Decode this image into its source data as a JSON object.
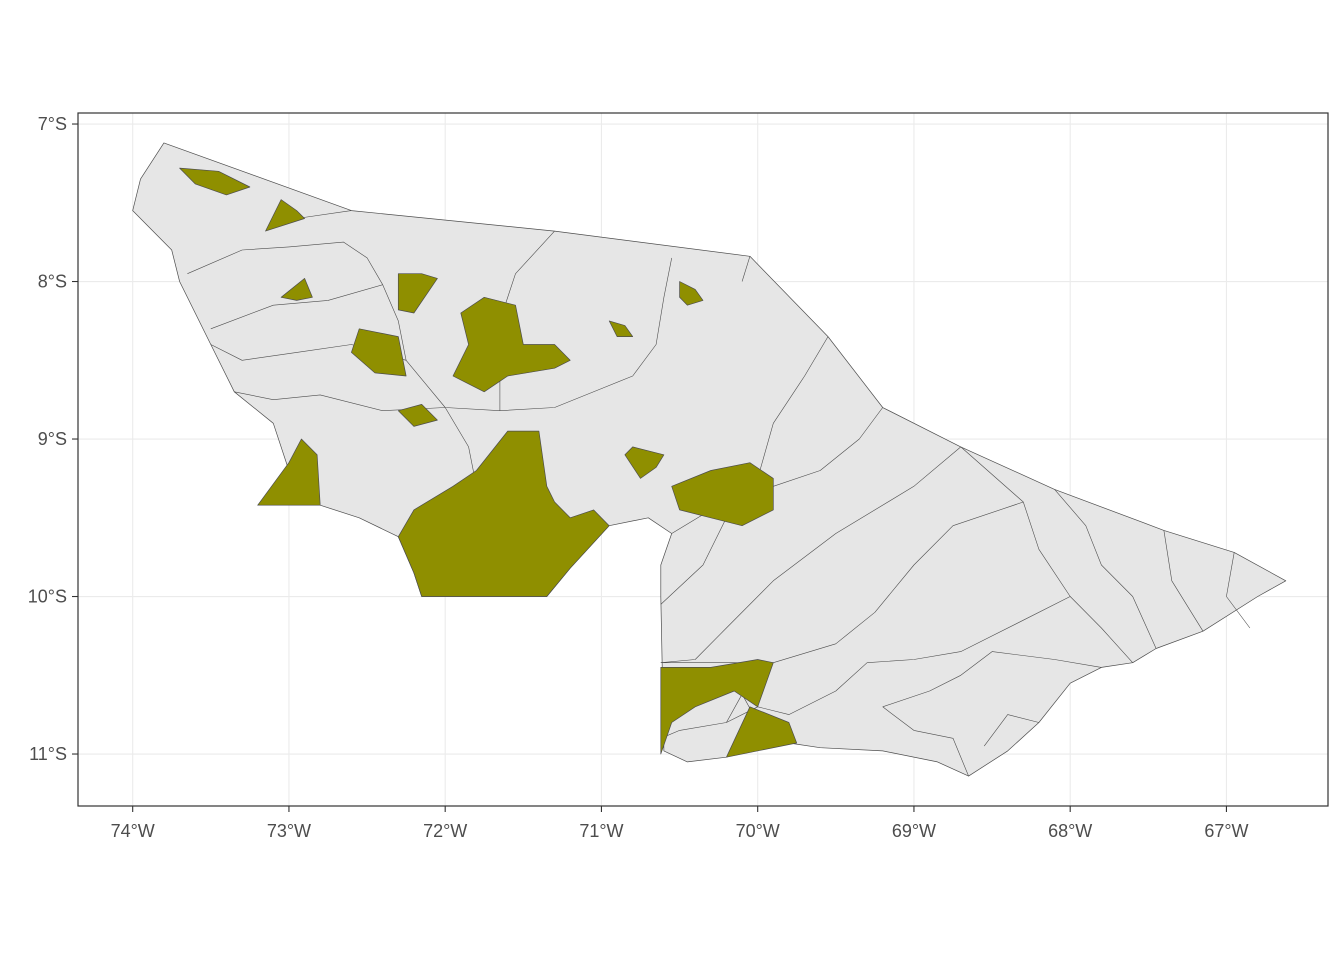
{
  "map": {
    "colors": {
      "background": "#ffffff",
      "grid": "#ebebeb",
      "panel_border": "#333333",
      "state_fill": "#e6e6e6",
      "boundary": "#4d4d4d",
      "highlight_fill": "#8f8f00",
      "axis_text": "#4d4d4d"
    },
    "x_axis": {
      "ticks": [
        {
          "value": -74,
          "label": "74°W"
        },
        {
          "value": -73,
          "label": "73°W"
        },
        {
          "value": -72,
          "label": "72°W"
        },
        {
          "value": -71,
          "label": "71°W"
        },
        {
          "value": -70,
          "label": "70°W"
        },
        {
          "value": -69,
          "label": "69°W"
        },
        {
          "value": -68,
          "label": "68°W"
        },
        {
          "value": -67,
          "label": "67°W"
        }
      ],
      "range": [
        -74.35,
        -66.35
      ]
    },
    "y_axis": {
      "ticks": [
        {
          "value": -7,
          "label": "7°S"
        },
        {
          "value": -8,
          "label": "8°S"
        },
        {
          "value": -9,
          "label": "9°S"
        },
        {
          "value": -10,
          "label": "10°S"
        },
        {
          "value": -11,
          "label": "11°S"
        }
      ],
      "range": [
        -11.33,
        -6.93
      ]
    },
    "legend": "none",
    "grid": true,
    "state_outline": [
      [
        -73.8,
        -7.12
      ],
      [
        -72.6,
        -7.55
      ],
      [
        -71.3,
        -7.68
      ],
      [
        -70.05,
        -7.84
      ],
      [
        -69.55,
        -8.35
      ],
      [
        -69.2,
        -8.8
      ],
      [
        -68.7,
        -9.05
      ],
      [
        -68.1,
        -9.32
      ],
      [
        -67.4,
        -9.58
      ],
      [
        -66.95,
        -9.72
      ],
      [
        -66.62,
        -9.9
      ],
      [
        -66.8,
        -10.0
      ],
      [
        -67.15,
        -10.22
      ],
      [
        -67.45,
        -10.33
      ],
      [
        -67.6,
        -10.42
      ],
      [
        -67.8,
        -10.45
      ],
      [
        -68.0,
        -10.55
      ],
      [
        -68.2,
        -10.8
      ],
      [
        -68.4,
        -10.98
      ],
      [
        -68.65,
        -11.14
      ],
      [
        -68.85,
        -11.05
      ],
      [
        -69.2,
        -10.98
      ],
      [
        -69.6,
        -10.96
      ],
      [
        -69.8,
        -10.93
      ],
      [
        -70.05,
        -10.96
      ],
      [
        -70.2,
        -11.02
      ],
      [
        -70.45,
        -11.05
      ],
      [
        -70.6,
        -10.98
      ],
      [
        -70.62,
        -10.0
      ],
      [
        -70.62,
        -9.8
      ],
      [
        -70.55,
        -9.6
      ],
      [
        -70.7,
        -9.5
      ],
      [
        -70.95,
        -9.55
      ],
      [
        -71.2,
        -9.82
      ],
      [
        -71.35,
        -10.0
      ],
      [
        -72.15,
        -10.0
      ],
      [
        -72.2,
        -9.85
      ],
      [
        -72.3,
        -9.62
      ],
      [
        -72.55,
        -9.5
      ],
      [
        -72.8,
        -9.42
      ],
      [
        -73.2,
        -9.42
      ],
      [
        -73.0,
        -9.2
      ],
      [
        -73.1,
        -8.9
      ],
      [
        -73.35,
        -8.7
      ],
      [
        -73.5,
        -8.4
      ],
      [
        -73.7,
        -8.0
      ],
      [
        -73.75,
        -7.8
      ],
      [
        -74.0,
        -7.55
      ],
      [
        -73.95,
        -7.35
      ],
      [
        -73.8,
        -7.12
      ]
    ],
    "internal_boundaries": [
      [
        [
          -72.4,
          -8.02
        ],
        [
          -72.5,
          -7.85
        ],
        [
          -72.65,
          -7.75
        ],
        [
          -73.0,
          -7.78
        ],
        [
          -73.3,
          -7.8
        ],
        [
          -73.65,
          -7.95
        ]
      ],
      [
        [
          -72.6,
          -7.55
        ],
        [
          -72.95,
          -7.6
        ]
      ],
      [
        [
          -72.4,
          -8.02
        ],
        [
          -72.75,
          -8.12
        ],
        [
          -73.1,
          -8.15
        ],
        [
          -73.5,
          -8.3
        ]
      ],
      [
        [
          -72.4,
          -8.02
        ],
        [
          -72.3,
          -8.25
        ],
        [
          -72.25,
          -8.5
        ],
        [
          -72.0,
          -8.8
        ],
        [
          -71.65,
          -8.82
        ],
        [
          -71.3,
          -8.8
        ],
        [
          -71.0,
          -8.68
        ],
        [
          -70.8,
          -8.6
        ],
        [
          -70.65,
          -8.4
        ],
        [
          -70.6,
          -8.1
        ],
        [
          -70.55,
          -7.85
        ]
      ],
      [
        [
          -71.3,
          -7.68
        ],
        [
          -71.55,
          -7.95
        ],
        [
          -71.65,
          -8.25
        ],
        [
          -71.65,
          -8.82
        ]
      ],
      [
        [
          -72.25,
          -8.5
        ],
        [
          -72.6,
          -8.4
        ],
        [
          -72.95,
          -8.45
        ],
        [
          -73.3,
          -8.5
        ],
        [
          -73.5,
          -8.4
        ]
      ],
      [
        [
          -72.0,
          -8.8
        ],
        [
          -72.4,
          -8.82
        ],
        [
          -72.8,
          -8.72
        ],
        [
          -73.1,
          -8.75
        ],
        [
          -73.35,
          -8.7
        ]
      ],
      [
        [
          -72.0,
          -8.8
        ],
        [
          -71.85,
          -9.05
        ],
        [
          -71.8,
          -9.3
        ],
        [
          -72.0,
          -9.4
        ],
        [
          -72.2,
          -9.55
        ]
      ],
      [
        [
          -70.05,
          -7.84
        ],
        [
          -70.1,
          -8.0
        ]
      ],
      [
        [
          -69.55,
          -8.35
        ],
        [
          -69.7,
          -8.6
        ],
        [
          -69.9,
          -8.9
        ],
        [
          -70.0,
          -9.25
        ],
        [
          -70.2,
          -9.5
        ],
        [
          -70.35,
          -9.8
        ],
        [
          -70.62,
          -10.05
        ]
      ],
      [
        [
          -69.2,
          -8.8
        ],
        [
          -69.35,
          -9.0
        ],
        [
          -69.6,
          -9.2
        ],
        [
          -69.9,
          -9.3
        ]
      ],
      [
        [
          -68.7,
          -9.05
        ],
        [
          -68.3,
          -9.4
        ],
        [
          -68.2,
          -9.7
        ],
        [
          -68.0,
          -10.0
        ],
        [
          -67.8,
          -10.2
        ],
        [
          -67.6,
          -10.42
        ]
      ],
      [
        [
          -68.1,
          -9.32
        ],
        [
          -67.9,
          -9.55
        ],
        [
          -67.8,
          -9.8
        ],
        [
          -67.6,
          -10.0
        ],
        [
          -67.45,
          -10.33
        ]
      ],
      [
        [
          -67.4,
          -9.58
        ],
        [
          -67.35,
          -9.9
        ],
        [
          -67.15,
          -10.22
        ]
      ],
      [
        [
          -66.95,
          -9.72
        ],
        [
          -67.0,
          -10.0
        ],
        [
          -66.85,
          -10.2
        ]
      ],
      [
        [
          -68.7,
          -9.05
        ],
        [
          -69.0,
          -9.3
        ],
        [
          -69.5,
          -9.6
        ],
        [
          -69.9,
          -9.9
        ],
        [
          -70.2,
          -10.2
        ],
        [
          -70.4,
          -10.4
        ],
        [
          -70.62,
          -10.42
        ]
      ],
      [
        [
          -69.9,
          -9.3
        ],
        [
          -70.3,
          -9.45
        ],
        [
          -70.55,
          -9.6
        ]
      ],
      [
        [
          -68.3,
          -9.4
        ],
        [
          -68.75,
          -9.55
        ],
        [
          -69.0,
          -9.8
        ],
        [
          -69.25,
          -10.1
        ],
        [
          -69.5,
          -10.3
        ],
        [
          -69.9,
          -10.42
        ],
        [
          -70.62,
          -10.42
        ]
      ],
      [
        [
          -68.0,
          -10.0
        ],
        [
          -68.3,
          -10.15
        ],
        [
          -68.7,
          -10.35
        ],
        [
          -69.0,
          -10.4
        ],
        [
          -69.3,
          -10.42
        ]
      ],
      [
        [
          -67.8,
          -10.45
        ],
        [
          -68.1,
          -10.4
        ],
        [
          -68.5,
          -10.35
        ],
        [
          -68.7,
          -10.5
        ],
        [
          -68.9,
          -10.6
        ],
        [
          -69.2,
          -10.7
        ]
      ],
      [
        [
          -69.3,
          -10.42
        ],
        [
          -69.5,
          -10.6
        ],
        [
          -69.8,
          -10.75
        ],
        [
          -70.0,
          -10.7
        ],
        [
          -70.2,
          -10.8
        ],
        [
          -70.5,
          -10.85
        ],
        [
          -70.62,
          -10.9
        ]
      ],
      [
        [
          -68.65,
          -11.14
        ],
        [
          -68.75,
          -10.9
        ],
        [
          -69.0,
          -10.85
        ],
        [
          -69.2,
          -10.7
        ]
      ],
      [
        [
          -68.2,
          -10.8
        ],
        [
          -68.4,
          -10.75
        ],
        [
          -68.55,
          -10.95
        ]
      ],
      [
        [
          -70.05,
          -10.96
        ],
        [
          -70.0,
          -10.8
        ],
        [
          -70.1,
          -10.62
        ],
        [
          -70.2,
          -10.8
        ]
      ]
    ],
    "highlighted_areas": [
      [
        [
          -73.7,
          -7.28
        ],
        [
          -73.45,
          -7.3
        ],
        [
          -73.25,
          -7.4
        ],
        [
          -73.4,
          -7.45
        ],
        [
          -73.6,
          -7.38
        ]
      ],
      [
        [
          -73.15,
          -7.68
        ],
        [
          -73.05,
          -7.48
        ],
        [
          -72.95,
          -7.55
        ],
        [
          -72.9,
          -7.6
        ]
      ],
      [
        [
          -72.3,
          -7.95
        ],
        [
          -72.15,
          -7.95
        ],
        [
          -72.05,
          -7.98
        ],
        [
          -72.2,
          -8.2
        ],
        [
          -72.3,
          -8.18
        ]
      ],
      [
        [
          -73.05,
          -8.1
        ],
        [
          -72.9,
          -7.98
        ],
        [
          -72.85,
          -8.1
        ],
        [
          -72.95,
          -8.12
        ]
      ],
      [
        [
          -72.55,
          -8.3
        ],
        [
          -72.3,
          -8.35
        ],
        [
          -72.25,
          -8.6
        ],
        [
          -72.45,
          -8.58
        ],
        [
          -72.6,
          -8.45
        ]
      ],
      [
        [
          -71.9,
          -8.2
        ],
        [
          -71.75,
          -8.1
        ],
        [
          -71.55,
          -8.15
        ],
        [
          -71.5,
          -8.4
        ],
        [
          -71.3,
          -8.4
        ],
        [
          -71.2,
          -8.5
        ],
        [
          -71.3,
          -8.55
        ],
        [
          -71.6,
          -8.6
        ],
        [
          -71.75,
          -8.7
        ],
        [
          -71.95,
          -8.6
        ],
        [
          -71.85,
          -8.4
        ]
      ],
      [
        [
          -72.3,
          -8.82
        ],
        [
          -72.15,
          -8.78
        ],
        [
          -72.05,
          -8.88
        ],
        [
          -72.2,
          -8.92
        ]
      ],
      [
        [
          -70.95,
          -8.25
        ],
        [
          -70.85,
          -8.28
        ],
        [
          -70.8,
          -8.35
        ],
        [
          -70.9,
          -8.35
        ]
      ],
      [
        [
          -70.5,
          -8.0
        ],
        [
          -70.4,
          -8.05
        ],
        [
          -70.35,
          -8.12
        ],
        [
          -70.45,
          -8.15
        ],
        [
          -70.5,
          -8.1
        ]
      ],
      [
        [
          -70.8,
          -9.05
        ],
        [
          -70.6,
          -9.1
        ],
        [
          -70.65,
          -9.18
        ],
        [
          -70.75,
          -9.25
        ],
        [
          -70.85,
          -9.1
        ]
      ],
      [
        [
          -70.55,
          -9.3
        ],
        [
          -70.3,
          -9.2
        ],
        [
          -70.05,
          -9.15
        ],
        [
          -69.9,
          -9.25
        ],
        [
          -69.9,
          -9.45
        ],
        [
          -70.1,
          -9.55
        ],
        [
          -70.3,
          -9.5
        ],
        [
          -70.5,
          -9.45
        ]
      ],
      [
        [
          -73.2,
          -9.42
        ],
        [
          -72.8,
          -9.42
        ],
        [
          -72.82,
          -9.1
        ],
        [
          -72.92,
          -9.0
        ],
        [
          -73.0,
          -9.15
        ]
      ],
      [
        [
          -72.15,
          -10.0
        ],
        [
          -72.2,
          -9.85
        ],
        [
          -72.3,
          -9.62
        ],
        [
          -72.2,
          -9.45
        ],
        [
          -71.95,
          -9.3
        ],
        [
          -71.8,
          -9.2
        ],
        [
          -71.6,
          -8.95
        ],
        [
          -71.4,
          -8.95
        ],
        [
          -71.35,
          -9.3
        ],
        [
          -71.3,
          -9.4
        ],
        [
          -71.2,
          -9.5
        ],
        [
          -71.05,
          -9.45
        ],
        [
          -70.95,
          -9.55
        ],
        [
          -71.2,
          -9.82
        ],
        [
          -71.35,
          -10.0
        ]
      ],
      [
        [
          -70.62,
          -10.45
        ],
        [
          -70.3,
          -10.45
        ],
        [
          -70.0,
          -10.4
        ],
        [
          -69.9,
          -10.42
        ],
        [
          -70.0,
          -10.7
        ],
        [
          -70.15,
          -10.6
        ],
        [
          -70.4,
          -10.7
        ],
        [
          -70.55,
          -10.8
        ],
        [
          -70.62,
          -11.0
        ]
      ],
      [
        [
          -70.2,
          -11.02
        ],
        [
          -70.05,
          -10.7
        ],
        [
          -69.8,
          -10.8
        ],
        [
          -69.75,
          -10.93
        ]
      ]
    ]
  }
}
